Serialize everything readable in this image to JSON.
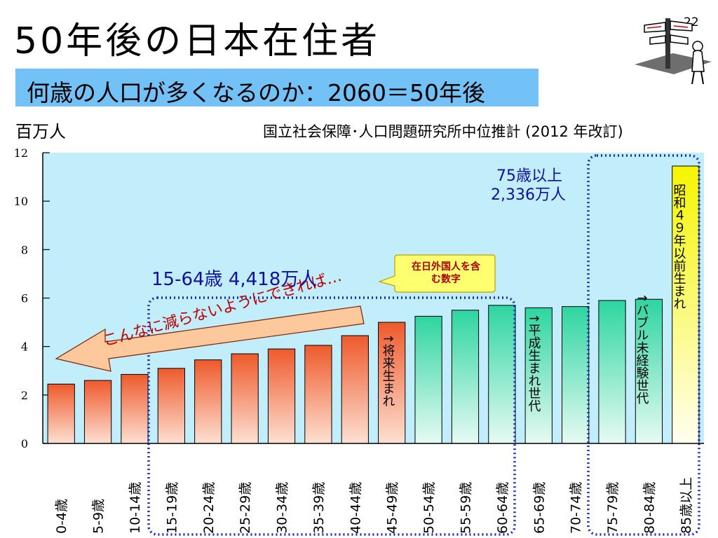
{
  "header": {
    "title": "50年後の日本在住者",
    "subtitle": "何歳の人口が多くなるのか：2060＝50年後",
    "slide_number": "22",
    "unit": "百万人",
    "source": "国立社会保障･人口問題研究所中位推計 (2012 年改訂)"
  },
  "annotations": {
    "working_age": "15-64歳 4,418万人",
    "over75_line1": "75歳以上",
    "over75_line2": "2,336万人",
    "foreigners_line1": "在日外国人を含",
    "foreigners_line2": "む数字",
    "wish": "こんなに減らないようにできれば…",
    "future_born": "↑将来生まれ",
    "heisei": "↑平成生まれ世代",
    "bubble": "↑バブル未経験世代",
    "showa": "昭和４９年以前生まれ"
  },
  "colors": {
    "plot_background": "#c2edfb",
    "red_top": "#ee5a2c",
    "red_bottom": "#fde0d2",
    "green_top": "#2ed5a0",
    "green_bottom": "#e6fbf3",
    "yellow_top": "#f5f500",
    "yellow_bottom": "#fffff0",
    "frame_blue": "#1828c8",
    "callout_fill": "#ffff70"
  },
  "icons": {
    "decoration": "signpost-person-icon"
  },
  "chart_data": {
    "type": "bar",
    "ylabel": "百万人",
    "ylim": [
      0,
      12
    ],
    "yticks": [
      0,
      2,
      4,
      6,
      8,
      10,
      12
    ],
    "grid": false,
    "categories": [
      "0-4歳",
      "5-9歳",
      "10-14歳",
      "15-19歳",
      "20-24歳",
      "25-29歳",
      "30-34歳",
      "35-39歳",
      "40-44歳",
      "45-49歳",
      "50-54歳",
      "55-59歳",
      "60-64歳",
      "65-69歳",
      "70-74歳",
      "75-79歳",
      "80-84歳",
      "85歳以上"
    ],
    "values": [
      2.45,
      2.6,
      2.85,
      3.1,
      3.45,
      3.7,
      3.9,
      4.05,
      4.45,
      5.0,
      5.25,
      5.5,
      5.7,
      5.6,
      5.65,
      5.9,
      5.95,
      11.45
    ],
    "bar_colors": [
      "red",
      "red",
      "red",
      "red",
      "red",
      "red",
      "red",
      "red",
      "red",
      "red",
      "green",
      "green",
      "green",
      "green",
      "green",
      "green",
      "green",
      "yellow"
    ]
  }
}
